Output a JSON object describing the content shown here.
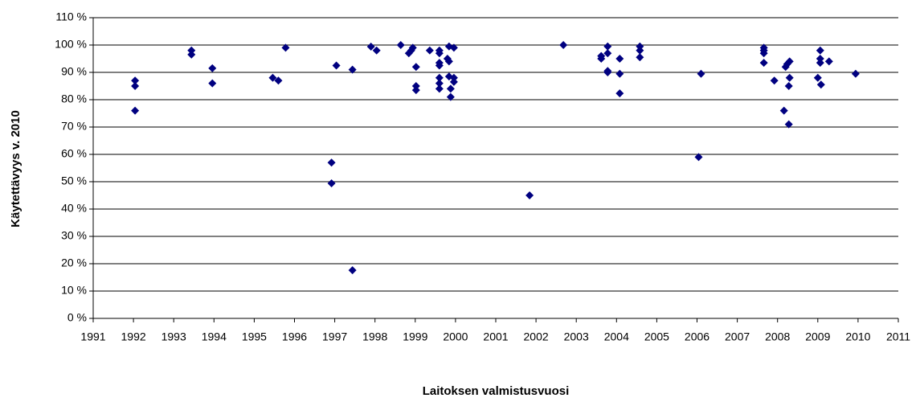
{
  "chart_data": {
    "type": "scatter",
    "x_label": "Laitoksen valmistusvuosi",
    "y_label": "Käytettävyys v. 2010",
    "color": "#000080",
    "grid": true,
    "xlim": [
      1991,
      2011
    ],
    "xticks": [
      1991,
      1992,
      1993,
      1994,
      1995,
      1996,
      1997,
      1998,
      1999,
      2000,
      2001,
      2002,
      2003,
      2004,
      2005,
      2006,
      2007,
      2008,
      2009,
      2010,
      2011
    ],
    "ylim": [
      0,
      110
    ],
    "yticks": [
      {
        "value": 0,
        "label": "0 %"
      },
      {
        "value": 10,
        "label": "10 %"
      },
      {
        "value": 20,
        "label": "20 %"
      },
      {
        "value": 30,
        "label": "30 %"
      },
      {
        "value": 40,
        "label": "40 %"
      },
      {
        "value": 50,
        "label": "50 %"
      },
      {
        "value": 60,
        "label": "60 %"
      },
      {
        "value": 70,
        "label": "70 %"
      },
      {
        "value": 80,
        "label": "80 %"
      },
      {
        "value": 90,
        "label": "90 %"
      },
      {
        "value": 100,
        "label": "100 %"
      },
      {
        "value": 110,
        "label": "110 %"
      }
    ],
    "x": [
      1992.04,
      1992.04,
      1992.04,
      1993.44,
      1993.44,
      1993.96,
      1993.96,
      1995.46,
      1995.6,
      1995.78,
      1996.92,
      1996.92,
      1997.04,
      1997.44,
      1997.44,
      1997.9,
      1998.04,
      1998.64,
      1998.84,
      1998.9,
      1998.94,
      1999.02,
      1999.02,
      1999.02,
      1999.36,
      1999.6,
      1999.6,
      1999.6,
      1999.6,
      1999.6,
      1999.6,
      1999.6,
      1999.8,
      1999.84,
      1999.84,
      1999.84,
      1999.88,
      1999.88,
      1999.96,
      1999.96,
      1999.96,
      2001.84,
      2002.68,
      2003.62,
      2003.62,
      2003.78,
      2003.78,
      2003.78,
      2003.78,
      2004.08,
      2004.08,
      2004.08,
      2004.58,
      2004.58,
      2004.58,
      2006.1,
      2006.04,
      2007.66,
      2007.66,
      2007.66,
      2007.66,
      2007.92,
      2008.16,
      2008.2,
      2008.24,
      2008.3,
      2008.3,
      2008.28,
      2008.28,
      2009.06,
      2009.06,
      2009.06,
      2009.0,
      2009.08,
      2009.28,
      2009.94
    ],
    "values": [
      87,
      85,
      76,
      98,
      96.5,
      91.5,
      86,
      88,
      87,
      99,
      57,
      49.4,
      92.5,
      91,
      17.6,
      99.4,
      98,
      100,
      97,
      98,
      99,
      92,
      83.5,
      85,
      98,
      98,
      97,
      93.5,
      92.5,
      88,
      86,
      84,
      95,
      99.5,
      94,
      88.5,
      84,
      81,
      99,
      88,
      86.5,
      45,
      100,
      96,
      95,
      99.5,
      97,
      90.5,
      90,
      95,
      89.5,
      82.3,
      99.5,
      98,
      95.5,
      89.5,
      59,
      99,
      98,
      97,
      93.5,
      87,
      76,
      92,
      93,
      94,
      88,
      85,
      71,
      98,
      95,
      93.5,
      88,
      85.5,
      94,
      89.5
    ]
  }
}
